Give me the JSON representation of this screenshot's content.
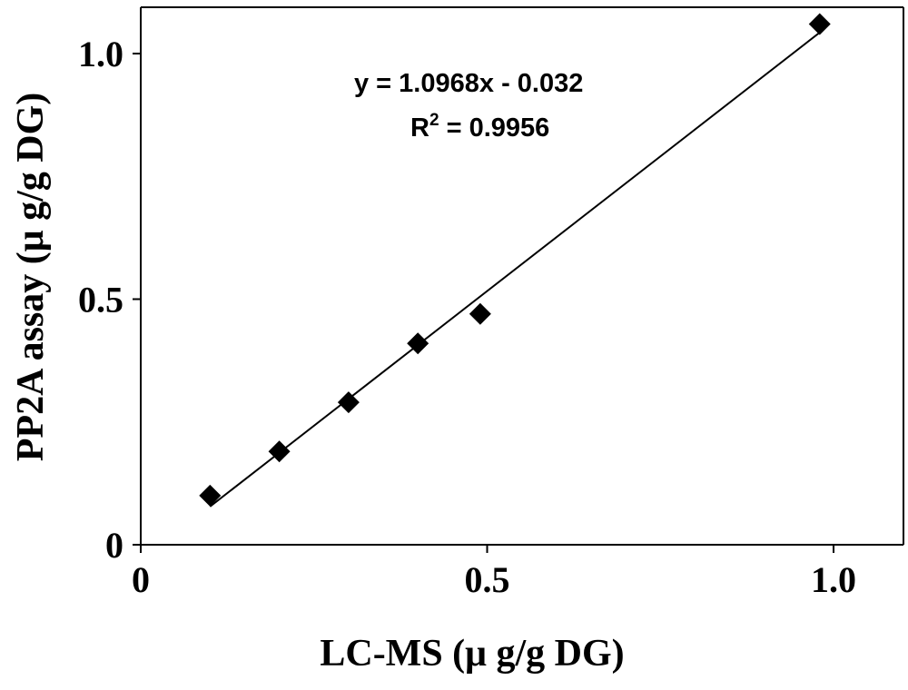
{
  "chart_data": {
    "type": "scatter",
    "title": "",
    "xlabel": "LC-MS (μ g/g  DG)",
    "ylabel": "PP2A assay (μ g/g  DG)",
    "xlim": [
      0,
      1.1
    ],
    "ylim": [
      0,
      1.1
    ],
    "x_ticks": [
      0,
      0.5,
      1.0
    ],
    "x_tick_labels": [
      "0",
      "0.5",
      "1.0"
    ],
    "y_ticks": [
      0,
      0.5,
      1.0
    ],
    "y_tick_labels": [
      "0",
      "0.5",
      "1.0"
    ],
    "series": [
      {
        "marker": "diamond",
        "color": "#000000",
        "x": [
          0.1,
          0.2,
          0.3,
          0.4,
          0.49,
          0.98
        ],
        "y": [
          0.1,
          0.19,
          0.29,
          0.41,
          0.47,
          1.06
        ]
      }
    ],
    "trendline": {
      "slope": 1.0968,
      "intercept": -0.032,
      "x_range": [
        0.1,
        0.98
      ]
    },
    "annotations": {
      "equation": "y = 1.0968x  - 0.032",
      "r2_prefix": "R",
      "r2_sup": "2",
      "r2_value": " = 0.9956"
    },
    "grid": false,
    "legend": "none"
  }
}
